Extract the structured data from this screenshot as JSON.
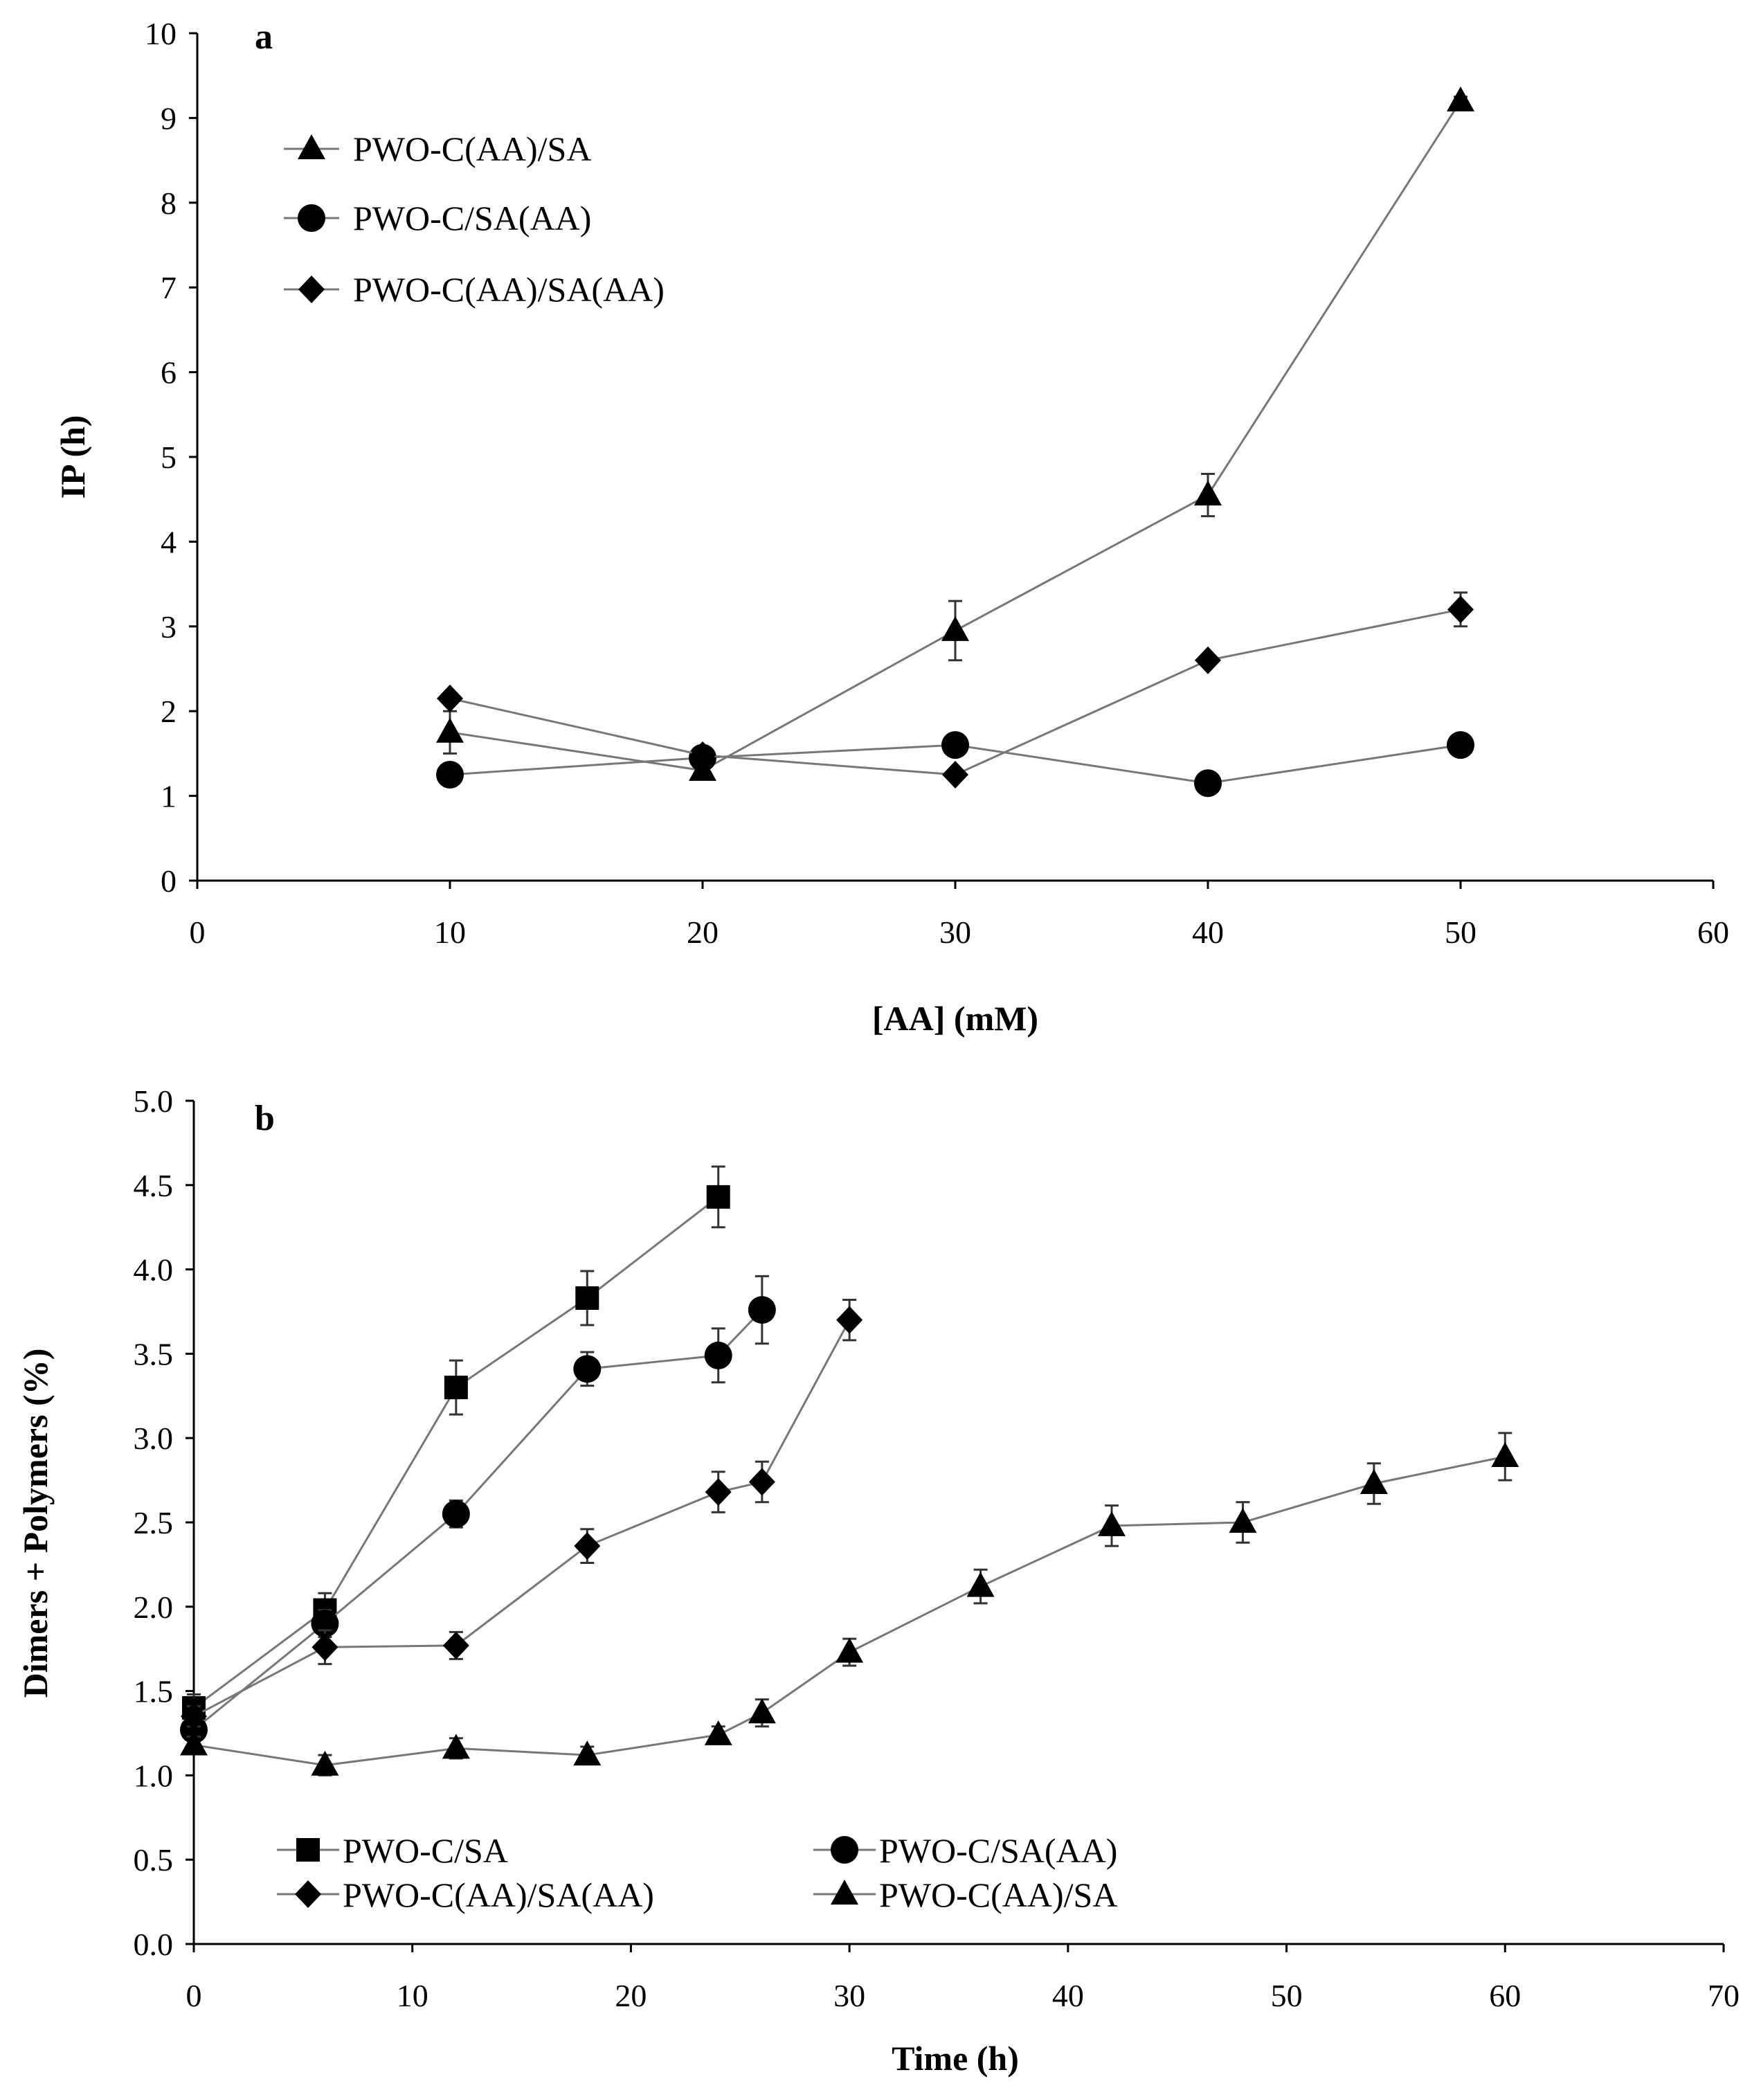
{
  "chart_data": [
    {
      "type": "line",
      "panel_label": "a",
      "xlabel": "[AA] (mM)",
      "ylabel": "IP (h)",
      "xlim": [
        0,
        60
      ],
      "ylim": [
        0,
        10
      ],
      "xticks": [
        0,
        10,
        20,
        30,
        40,
        50,
        60
      ],
      "yticks": [
        0,
        1,
        2,
        3,
        4,
        5,
        6,
        7,
        8,
        9,
        10
      ],
      "xtick_labels": [
        "0",
        "10",
        "20",
        "30",
        "40",
        "50",
        "60"
      ],
      "ytick_labels": [
        "0",
        "1",
        "2",
        "3",
        "4",
        "5",
        "6",
        "7",
        "8",
        "9",
        "10"
      ],
      "grid": false,
      "legend_position": "top-left",
      "series": [
        {
          "name": "PWO-C(AA)/SA",
          "marker": "triangle",
          "x": [
            10,
            20,
            30,
            40,
            50
          ],
          "values": [
            1.75,
            1.3,
            2.95,
            4.55,
            9.2
          ],
          "errors": [
            0.25,
            0.1,
            0.35,
            0.25,
            0.05
          ]
        },
        {
          "name": "PWO-C/SA(AA)",
          "marker": "circle",
          "x": [
            10,
            20,
            30,
            40,
            50
          ],
          "values": [
            1.25,
            1.45,
            1.6,
            1.15,
            1.6
          ],
          "errors": [
            0.05,
            0.05,
            0.05,
            0.05,
            0.05
          ]
        },
        {
          "name": "PWO-C(AA)/SA(AA)",
          "marker": "diamond",
          "x": [
            10,
            20,
            30,
            40,
            50
          ],
          "values": [
            2.15,
            1.48,
            1.25,
            2.6,
            3.2
          ],
          "errors": [
            0.05,
            0.05,
            0.05,
            0.05,
            0.2
          ]
        }
      ]
    },
    {
      "type": "line",
      "panel_label": "b",
      "xlabel": "Time (h)",
      "ylabel": "Dimers + Polymers (%)",
      "xlim": [
        0,
        70
      ],
      "ylim": [
        0,
        5
      ],
      "xticks": [
        0,
        10,
        20,
        30,
        40,
        50,
        60,
        70
      ],
      "yticks": [
        0,
        0.5,
        1,
        1.5,
        2,
        2.5,
        3,
        3.5,
        4,
        4.5,
        5
      ],
      "xtick_labels": [
        "0",
        "10",
        "20",
        "30",
        "40",
        "50",
        "60",
        "70"
      ],
      "ytick_labels": [
        "0.0",
        "0.5",
        "1.0",
        "1.5",
        "2.0",
        "2.5",
        "3.0",
        "3.5",
        "4.0",
        "4.5",
        "5.0"
      ],
      "grid": false,
      "legend_position": "bottom",
      "series": [
        {
          "name": "PWO-C/SA",
          "marker": "square",
          "x": [
            0,
            6,
            12,
            18,
            24
          ],
          "values": [
            1.4,
            1.98,
            3.3,
            3.83,
            4.43
          ],
          "errors": [
            0.08,
            0.1,
            0.16,
            0.16,
            0.18
          ]
        },
        {
          "name": "PWO-C/SA(AA)",
          "marker": "circle",
          "x": [
            0,
            6,
            12,
            18,
            24,
            26
          ],
          "values": [
            1.27,
            1.9,
            2.55,
            3.41,
            3.49,
            3.76
          ],
          "errors": [
            0.06,
            0.08,
            0.08,
            0.1,
            0.16,
            0.2
          ]
        },
        {
          "name": "PWO-C(AA)/SA(AA)",
          "marker": "diamond",
          "x": [
            0,
            6,
            12,
            18,
            24,
            26,
            30
          ],
          "values": [
            1.35,
            1.76,
            1.77,
            2.36,
            2.68,
            2.74,
            3.7
          ],
          "errors": [
            0.06,
            0.1,
            0.08,
            0.1,
            0.12,
            0.12,
            0.12
          ]
        },
        {
          "name": "PWO-C(AA)/SA",
          "marker": "triangle",
          "x": [
            0,
            6,
            12,
            18,
            24,
            26,
            30,
            36,
            42,
            48,
            54,
            60
          ],
          "values": [
            1.18,
            1.06,
            1.16,
            1.12,
            1.24,
            1.37,
            1.73,
            2.12,
            2.48,
            2.5,
            2.73,
            2.89
          ],
          "errors": [
            0.05,
            0.06,
            0.06,
            0.05,
            0.05,
            0.08,
            0.08,
            0.1,
            0.12,
            0.12,
            0.12,
            0.14
          ]
        }
      ]
    }
  ]
}
